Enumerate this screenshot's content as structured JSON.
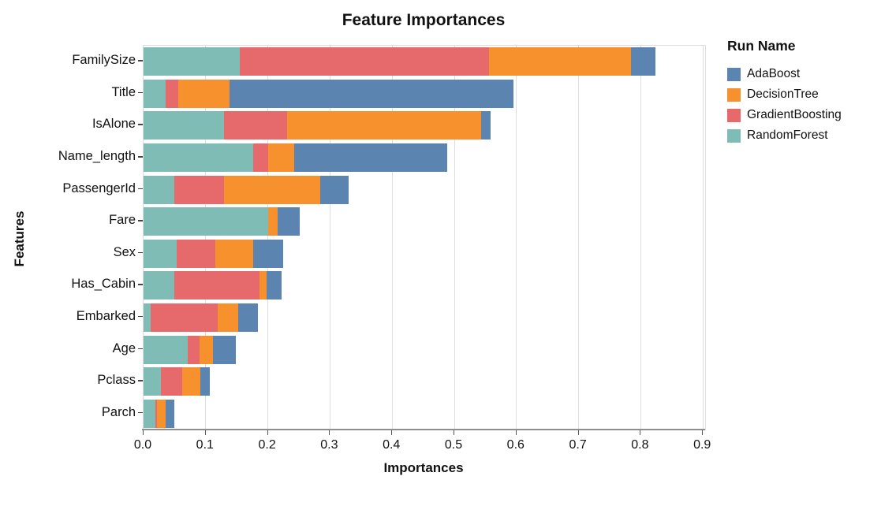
{
  "title": "Feature Importances",
  "x_axis": {
    "label": "Importances",
    "tick_labels": [
      "0.0",
      "0.1",
      "0.2",
      "0.3",
      "0.4",
      "0.5",
      "0.6",
      "0.7",
      "0.8",
      "0.9"
    ]
  },
  "y_axis": {
    "label": "Features"
  },
  "legend": {
    "title": "Run Name",
    "entries": [
      {
        "label": "AdaBoost",
        "color": "#5b84b1"
      },
      {
        "label": "DecisionTree",
        "color": "#f6912e"
      },
      {
        "label": "GradientBoosting",
        "color": "#e66a6b"
      },
      {
        "label": "RandomForest",
        "color": "#7fbcb5"
      }
    ]
  },
  "colors": {
    "AdaBoost": "#5b84b1",
    "DecisionTree": "#f6912e",
    "GradientBoosting": "#e66a6b",
    "RandomForest": "#7fbcb5",
    "gridline": "#dddddd",
    "axis_line": "#8f8f8f"
  },
  "chart_data": {
    "type": "bar",
    "orientation": "horizontal",
    "stacked": true,
    "title": "Feature Importances",
    "xlabel": "Importances",
    "ylabel": "Features",
    "xlim": [
      0,
      0.9
    ],
    "x_ticks": [
      0.0,
      0.1,
      0.2,
      0.3,
      0.4,
      0.5,
      0.6,
      0.7,
      0.8,
      0.9
    ],
    "grid": true,
    "legend_position": "right",
    "legend_title": "Run Name",
    "categories": [
      "FamilySize",
      "Title",
      "IsAlone",
      "Name_length",
      "PassengerId",
      "Fare",
      "Sex",
      "Has_Cabin",
      "Embarked",
      "Age",
      "Pclass",
      "Parch"
    ],
    "stack_order": [
      "RandomForest",
      "GradientBoosting",
      "DecisionTree",
      "AdaBoost"
    ],
    "series": [
      {
        "name": "RandomForest",
        "values": [
          0.155,
          0.036,
          0.129,
          0.176,
          0.049,
          0.2,
          0.053,
          0.049,
          0.011,
          0.071,
          0.028,
          0.019
        ]
      },
      {
        "name": "GradientBoosting",
        "values": [
          0.401,
          0.02,
          0.102,
          0.025,
          0.081,
          0.0,
          0.063,
          0.137,
          0.108,
          0.019,
          0.034,
          0.003
        ]
      },
      {
        "name": "DecisionTree",
        "values": [
          0.228,
          0.082,
          0.312,
          0.042,
          0.154,
          0.016,
          0.061,
          0.012,
          0.033,
          0.022,
          0.029,
          0.014
        ]
      },
      {
        "name": "AdaBoost",
        "values": [
          0.04,
          0.457,
          0.016,
          0.245,
          0.046,
          0.035,
          0.047,
          0.024,
          0.032,
          0.036,
          0.016,
          0.013
        ]
      }
    ],
    "totals": [
      0.824,
      0.595,
      0.559,
      0.488,
      0.33,
      0.251,
      0.224,
      0.222,
      0.184,
      0.148,
      0.107,
      0.049
    ]
  }
}
